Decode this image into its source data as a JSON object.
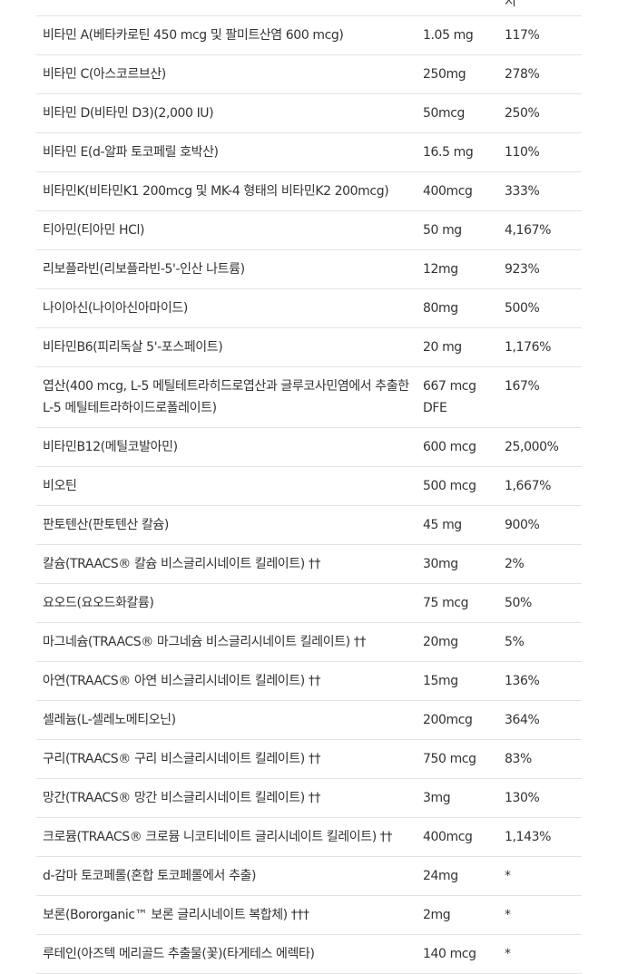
{
  "header_fragment": "지",
  "rows": [
    {
      "name": "비타민 A(베타카로틴 450 mcg 및 팔미트산염 600 mcg)",
      "amount": "1.05 mg",
      "dv": "117%"
    },
    {
      "name": "비타민 C(아스코르브산)",
      "amount": "250mg",
      "dv": "278%"
    },
    {
      "name": "비타민 D(비타민 D3)(2,000 IU)",
      "amount": "50mcg",
      "dv": "250%"
    },
    {
      "name": "비타민 E(d-알파 토코페릴 호박산)",
      "amount": "16.5 mg",
      "dv": "110%"
    },
    {
      "name": "비타민K(비타민K1 200mcg 및 MK-4 형태의 비타민K2 200mcg)",
      "amount": "400mcg",
      "dv": "333%"
    },
    {
      "name": "티아민(티아민 HCl)",
      "amount": "50 mg",
      "dv": "4,167%"
    },
    {
      "name": "리보플라빈(리보플라빈-5'-인산 나트륨)",
      "amount": "12mg",
      "dv": "923%"
    },
    {
      "name": "나이아신(나이아신아마이드)",
      "amount": "80mg",
      "dv": "500%"
    },
    {
      "name": "비타민B6(피리독살 5'-포스페이트)",
      "amount": "20 mg",
      "dv": "1,176%"
    },
    {
      "name": "엽산(400 mcg, L-5 메틸테트라히드로엽산과 글루코사민염에서 추출한 L-5 메틸테트라하이드로폴레이트)",
      "amount": "667 mcg DFE",
      "dv": "167%"
    },
    {
      "name": "비타민B12(메틸코발아민)",
      "amount": "600 mcg",
      "dv": "25,000%"
    },
    {
      "name": "비오틴",
      "amount": "500 mcg",
      "dv": "1,667%"
    },
    {
      "name": "판토텐산(판토텐산 칼슘)",
      "amount": "45 mg",
      "dv": "900%"
    },
    {
      "name": "칼슘(TRAACS® 칼슘 비스글리시네이트 킬레이트) ††",
      "amount": "30mg",
      "dv": "2%"
    },
    {
      "name": "요오드(요오드화칼륨)",
      "amount": "75 mcg",
      "dv": "50%"
    },
    {
      "name": "마그네슘(TRAACS® 마그네슘 비스글리시네이트 킬레이트) ††",
      "amount": "20mg",
      "dv": "5%"
    },
    {
      "name": "아연(TRAACS® 아연 비스글리시네이트 킬레이트) ††",
      "amount": "15mg",
      "dv": "136%"
    },
    {
      "name": "셀레늄(L-셀레노메티오닌)",
      "amount": "200mcg",
      "dv": "364%"
    },
    {
      "name": "구리(TRAACS® 구리 비스글리시네이트 킬레이트) ††",
      "amount": "750 mcg",
      "dv": "83%"
    },
    {
      "name": "망간(TRAACS® 망간 비스글리시네이트 킬레이트) ††",
      "amount": "3mg",
      "dv": "130%"
    },
    {
      "name": "크로뮴(TRAACS® 크로뮴 니코티네이트 글리시네이트 킬레이트) ††",
      "amount": "400mcg",
      "dv": "1,143%"
    },
    {
      "name": "d-감마 토코페롤(혼합 토코페롤에서 추출)",
      "amount": "24mg",
      "dv": "*"
    },
    {
      "name": "보론(Bororganic™ 보론 글리시네이트 복합체) †††",
      "amount": "2mg",
      "dv": "*"
    },
    {
      "name": "루테인(아즈텍 메리골드 추출물(꽃)(타게테스 에렉타)",
      "amount": "140 mcg",
      "dv": "*"
    }
  ]
}
